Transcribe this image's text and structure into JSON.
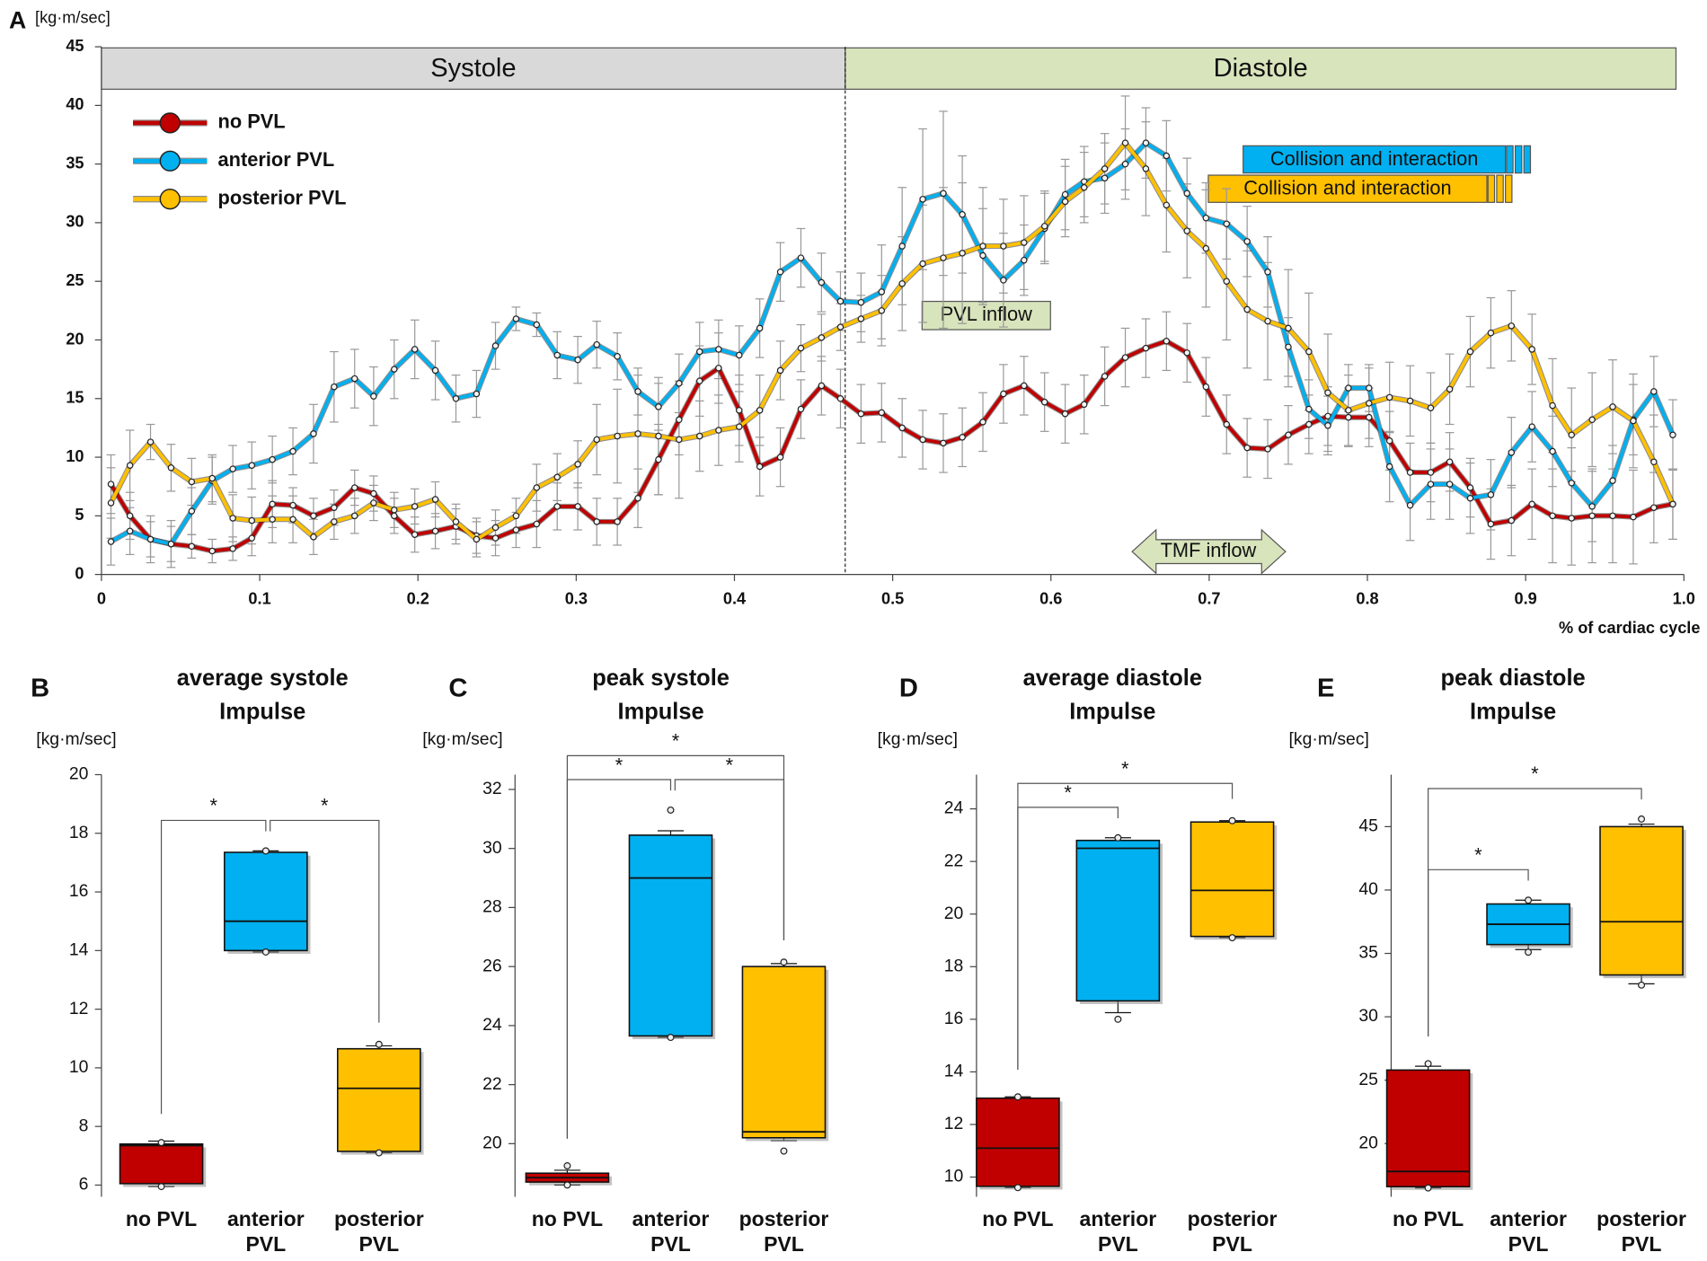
{
  "chart_data": [
    {
      "type": "line",
      "panel": "A",
      "y_label": "[kg·m/sec]",
      "x_label": "% of cardiac cycle",
      "xlim": [
        0,
        1
      ],
      "ylim": [
        0,
        45
      ],
      "xticks": [
        0,
        0.1,
        0.2,
        0.3,
        0.4,
        0.5,
        0.6,
        0.7,
        0.8,
        0.9,
        {
          "value": 1,
          "label": "1.0"
        }
      ],
      "yticks": [
        0,
        5,
        10,
        15,
        20,
        25,
        30,
        35,
        40,
        45
      ],
      "phases": [
        {
          "label": "Systole",
          "start": 0,
          "end": 0.47,
          "color": "#d9d9d9"
        },
        {
          "label": "Diastole",
          "start": 0.47,
          "end": 0.995,
          "color": "#d8e4bc"
        }
      ],
      "annotations": [
        {
          "text": "PVL inflow",
          "color": "#d8e4bc"
        },
        {
          "text": "TMF inflow",
          "color": "#d8e4bc"
        },
        {
          "text": "Collision and interaction",
          "color": "#00b0f0"
        },
        {
          "text": "Collision and interaction",
          "color": "#ffc000"
        }
      ],
      "x": [
        0.006,
        0.018,
        0.031,
        0.044,
        0.057,
        0.07,
        0.083,
        0.095,
        0.108,
        0.121,
        0.134,
        0.147,
        0.16,
        0.172,
        0.185,
        0.198,
        0.211,
        0.224,
        0.237,
        0.249,
        0.262,
        0.275,
        0.288,
        0.301,
        0.313,
        0.326,
        0.339,
        0.352,
        0.365,
        0.378,
        0.39,
        0.403,
        0.416,
        0.429,
        0.442,
        0.455,
        0.467,
        0.48,
        0.493,
        0.506,
        0.519,
        0.532,
        0.544,
        0.557,
        0.57,
        0.583,
        0.596,
        0.609,
        0.621,
        0.634,
        0.647,
        0.66,
        0.673,
        0.686,
        0.698,
        0.711,
        0.724,
        0.737,
        0.75,
        0.763,
        0.775,
        0.788,
        0.801,
        0.814,
        0.827,
        0.84,
        0.852,
        0.865,
        0.878,
        0.891,
        0.904,
        0.917,
        0.929,
        0.942,
        0.955,
        0.968,
        0.981,
        0.993
      ],
      "series": [
        {
          "name": "no PVL",
          "color": "#c00000",
          "values": [
            7.7,
            5.0,
            3.0,
            2.6,
            2.4,
            2.0,
            2.2,
            3.1,
            6.0,
            5.9,
            5.0,
            5.7,
            7.4,
            6.9,
            5.0,
            3.4,
            3.7,
            4.1,
            3.3,
            3.1,
            3.8,
            4.3,
            5.8,
            5.8,
            4.5,
            4.5,
            6.5,
            9.8,
            13.2,
            16.5,
            17.6,
            14.0,
            9.2,
            10.0,
            14.1,
            16.1,
            15.0,
            13.7,
            13.8,
            12.5,
            11.5,
            11.2,
            11.7,
            13.0,
            15.4,
            16.1,
            14.7,
            13.7,
            14.5,
            16.9,
            18.5,
            19.3,
            19.9,
            18.9,
            16.0,
            12.8,
            10.8,
            10.7,
            11.9,
            12.8,
            13.5,
            13.4,
            13.4,
            11.4,
            8.7,
            8.7,
            9.6,
            7.4,
            4.3,
            4.6,
            6.0,
            5.0,
            4.8,
            5.0,
            5.0,
            4.9,
            5.7,
            6.0
          ],
          "errors": [
            2.5,
            2,
            1.5,
            1.5,
            1,
            1,
            1,
            1.5,
            2,
            1.5,
            1.5,
            1.5,
            1.5,
            1.5,
            1.5,
            1.5,
            1.5,
            1.5,
            1.5,
            1.5,
            1.5,
            2,
            2,
            2,
            2,
            2,
            2.5,
            3,
            3,
            3,
            3,
            3,
            2.5,
            2.5,
            2.5,
            2.5,
            2.5,
            2.5,
            2.5,
            2.5,
            2.5,
            2.5,
            2.5,
            2.5,
            2.5,
            2.5,
            2.5,
            2.5,
            2.5,
            2.5,
            2.5,
            2.5,
            2.5,
            2.5,
            2.5,
            2.5,
            2.5,
            2.5,
            2.5,
            2.5,
            2.5,
            2.5,
            2.5,
            2.5,
            2.5,
            2.5,
            2.5,
            2.5,
            3,
            3,
            3,
            4,
            4,
            4,
            4,
            4,
            3,
            3
          ]
        },
        {
          "name": "anterior PVL",
          "color": "#00b0f0",
          "values": [
            2.8,
            3.7,
            3.0,
            2.6,
            5.4,
            8.0,
            9.0,
            9.3,
            9.8,
            10.5,
            12.0,
            16.0,
            16.7,
            15.2,
            17.5,
            19.2,
            17.4,
            15.0,
            15.4,
            19.5,
            21.8,
            21.3,
            18.7,
            18.3,
            19.6,
            18.6,
            15.6,
            14.3,
            16.3,
            19.0,
            19.2,
            18.7,
            21.0,
            25.8,
            27.0,
            24.9,
            23.3,
            23.2,
            24.1,
            28.0,
            32.0,
            32.5,
            30.7,
            27.2,
            25.1,
            26.8,
            29.5,
            32.4,
            33.5,
            33.8,
            35.0,
            36.8,
            35.7,
            32.5,
            30.4,
            29.9,
            28.4,
            25.8,
            19.4,
            14.1,
            12.7,
            15.9,
            15.9,
            9.2,
            5.9,
            7.7,
            7.7,
            6.5,
            6.8,
            10.4,
            12.6,
            10.5,
            7.8,
            5.8,
            8.0,
            13.2,
            15.6,
            11.9
          ],
          "errors": [
            2,
            2,
            2,
            2,
            2,
            2,
            2,
            2,
            2,
            2,
            2.5,
            3,
            2.5,
            2.5,
            2.5,
            2.5,
            2.5,
            2,
            2,
            2,
            1,
            1,
            2,
            2,
            2,
            2,
            2,
            2,
            2.5,
            2.5,
            2.5,
            2.5,
            2.5,
            2.5,
            2.5,
            2.5,
            2.5,
            2.5,
            4,
            5,
            6,
            7,
            5,
            4,
            4,
            3,
            3,
            3,
            3,
            3,
            3,
            3,
            3,
            3,
            3,
            3,
            3,
            3,
            2.5,
            2.5,
            2.5,
            2,
            2,
            3,
            3,
            3,
            3,
            3,
            3,
            3,
            3,
            3,
            3,
            3,
            3,
            3,
            3,
            3
          ]
        },
        {
          "name": "posterior PVL",
          "color": "#ffc000",
          "values": [
            6.1,
            9.3,
            11.3,
            9.1,
            7.9,
            8.2,
            4.8,
            4.6,
            4.7,
            4.7,
            3.2,
            4.5,
            5.0,
            6.1,
            5.5,
            5.8,
            6.4,
            4.5,
            3.0,
            4.0,
            5.0,
            7.4,
            8.3,
            9.4,
            11.5,
            11.8,
            12.0,
            11.8,
            11.5,
            11.8,
            12.3,
            12.6,
            14.0,
            17.4,
            19.3,
            20.2,
            21.1,
            21.8,
            22.5,
            24.8,
            26.5,
            27.0,
            27.4,
            28.0,
            28.0,
            28.3,
            29.7,
            31.8,
            33.0,
            34.6,
            36.8,
            34.6,
            31.5,
            29.3,
            27.8,
            25.0,
            22.6,
            21.6,
            21.0,
            19.0,
            15.5,
            14.0,
            14.6,
            15.1,
            14.8,
            14.2,
            15.8,
            19.0,
            20.6,
            21.2,
            19.2,
            14.4,
            11.9,
            13.2,
            14.3,
            13.1,
            9.6,
            6.0
          ],
          "errors": [
            3,
            3,
            1.5,
            2,
            2,
            2,
            2,
            2,
            2,
            2,
            1.5,
            1.5,
            1.5,
            1.5,
            1.5,
            1.5,
            1.5,
            1.5,
            1.5,
            1.5,
            1.5,
            2,
            2,
            2,
            3,
            4,
            5,
            5,
            5,
            3,
            3,
            3,
            3,
            2.5,
            2,
            2,
            2,
            2,
            3,
            4,
            5,
            6,
            6,
            5,
            4,
            4,
            3,
            3,
            3,
            3,
            4,
            4,
            4,
            4,
            5,
            5,
            5,
            5,
            5,
            5,
            5,
            3,
            3,
            3,
            3,
            3,
            3,
            3,
            3,
            3,
            3,
            4,
            4,
            4,
            4,
            4,
            4,
            3
          ]
        }
      ]
    },
    {
      "type": "box",
      "panel": "B",
      "title": "average systole\nImpulse",
      "y_label": "[kg·m/sec]",
      "categories": [
        "no PVL",
        "anterior\nPVL",
        "posterior\nPVL"
      ],
      "colors": [
        "#c00000",
        "#00b0f0",
        "#ffc000"
      ],
      "ylim": [
        5.6,
        20
      ],
      "yticks": [
        6,
        8,
        10,
        12,
        14,
        16,
        18,
        20
      ],
      "boxes": [
        {
          "min": 5.95,
          "q1": 6.05,
          "median": 7.35,
          "q3": 7.4,
          "max": 7.5,
          "points": [
            5.95,
            7.45
          ]
        },
        {
          "min": 13.95,
          "q1": 14.0,
          "median": 15.0,
          "q3": 17.35,
          "max": 17.4,
          "points": [
            13.95,
            17.4
          ]
        },
        {
          "min": 7.1,
          "q1": 7.15,
          "median": 9.3,
          "q3": 10.65,
          "max": 10.75,
          "points": [
            7.1,
            10.8
          ]
        }
      ],
      "significance": [
        {
          "between": [
            0,
            1
          ],
          "label": "*"
        },
        {
          "between": [
            1,
            2
          ],
          "label": "*"
        }
      ]
    },
    {
      "type": "box",
      "panel": "C",
      "title": "peak systole\nImpulse",
      "y_label": "[kg·m/sec]",
      "categories": [
        "no PVL",
        "anterior\nPVL",
        "posterior\nPVL"
      ],
      "colors": [
        "#c00000",
        "#00b0f0",
        "#ffc000"
      ],
      "ylim": [
        18.2,
        32.5
      ],
      "yticks": [
        20,
        22,
        24,
        26,
        28,
        30,
        32
      ],
      "boxes": [
        {
          "min": 18.6,
          "q1": 18.7,
          "median": 18.85,
          "q3": 19.0,
          "max": 19.1,
          "points": [
            18.6,
            19.25
          ]
        },
        {
          "min": 23.6,
          "q1": 23.65,
          "median": 29.0,
          "q3": 30.45,
          "max": 30.6,
          "points": [
            23.6,
            31.3
          ]
        },
        {
          "min": 20.1,
          "q1": 20.2,
          "median": 20.4,
          "q3": 26.0,
          "max": 26.1,
          "points": [
            19.75,
            26.15
          ]
        }
      ],
      "significance": [
        {
          "between": [
            0,
            1
          ],
          "label": "*"
        },
        {
          "between": [
            1,
            2
          ],
          "label": "*"
        },
        {
          "between": [
            0,
            2
          ],
          "label": "*"
        }
      ]
    },
    {
      "type": "box",
      "panel": "D",
      "title": "average diastole\nImpulse",
      "y_label": "[kg·m/sec]",
      "categories": [
        "no PVL",
        "anterior\nPVL",
        "posterior\nPVL"
      ],
      "colors": [
        "#c00000",
        "#00b0f0",
        "#ffc000"
      ],
      "ylim": [
        9.25,
        25.3
      ],
      "yticks": [
        10,
        12,
        14,
        16,
        18,
        20,
        22,
        24
      ],
      "boxes": [
        {
          "min": 9.6,
          "q1": 9.65,
          "median": 11.1,
          "q3": 13.0,
          "max": 13.05,
          "points": [
            9.6,
            13.05
          ]
        },
        {
          "min": 16.25,
          "q1": 16.7,
          "median": 22.5,
          "q3": 22.8,
          "max": 22.9,
          "points": [
            16.0,
            22.9
          ]
        },
        {
          "min": 19.1,
          "q1": 19.15,
          "median": 20.9,
          "q3": 23.5,
          "max": 23.55,
          "points": [
            19.1,
            23.55
          ]
        }
      ],
      "significance": [
        {
          "between": [
            0,
            1
          ],
          "label": "*"
        },
        {
          "between": [
            0,
            2
          ],
          "label": "*"
        }
      ]
    },
    {
      "type": "box",
      "panel": "E",
      "title": "peak diastole\nImpulse",
      "y_label": "[kg·m/sec]",
      "categories": [
        "no PVL",
        "anterior\nPVL",
        "posterior\nPVL"
      ],
      "colors": [
        "#c00000",
        "#00b0f0",
        "#ffc000"
      ],
      "ylim": [
        15.8,
        49.1
      ],
      "yticks": [
        20,
        25,
        30,
        35,
        40,
        45
      ],
      "boxes": [
        {
          "min": 16.5,
          "q1": 16.6,
          "median": 17.8,
          "q3": 25.8,
          "max": 26.1,
          "points": [
            16.5,
            26.3
          ]
        },
        {
          "min": 35.3,
          "q1": 35.7,
          "median": 37.3,
          "q3": 38.9,
          "max": 39.2,
          "points": [
            35.1,
            39.2
          ]
        },
        {
          "min": 32.6,
          "q1": 33.3,
          "median": 37.5,
          "q3": 45.0,
          "max": 45.2,
          "points": [
            32.5,
            45.6
          ]
        }
      ],
      "significance": [
        {
          "between": [
            0,
            1
          ],
          "label": "*"
        },
        {
          "between": [
            0,
            2
          ],
          "label": "*"
        }
      ]
    }
  ]
}
